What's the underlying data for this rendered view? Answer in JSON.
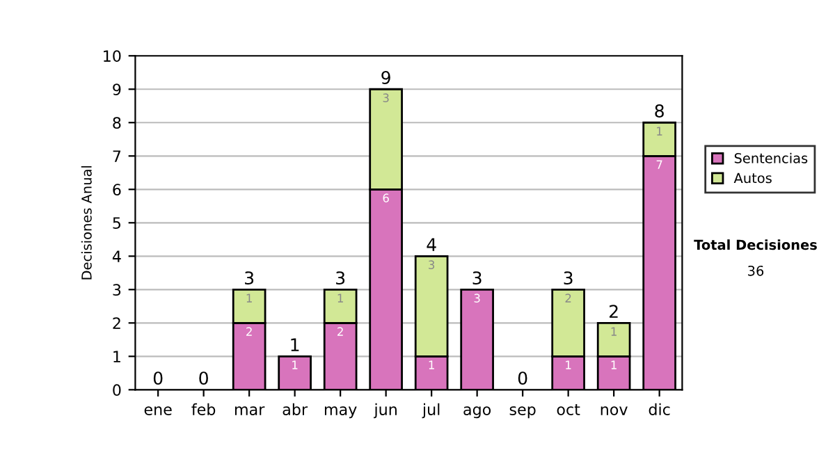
{
  "chart_data": {
    "type": "bar",
    "stacked": true,
    "ylabel": "Decisiones Anual",
    "categories": [
      "ene",
      "feb",
      "mar",
      "abr",
      "may",
      "jun",
      "jul",
      "ago",
      "sep",
      "oct",
      "nov",
      "dic"
    ],
    "series": [
      {
        "name": "Sentencias",
        "color": "#d874bc",
        "values": [
          0,
          0,
          2,
          1,
          2,
          6,
          1,
          3,
          0,
          1,
          1,
          7
        ],
        "value_labels": [
          null,
          null,
          "2",
          "1",
          "2",
          "6",
          "1",
          "3",
          null,
          "1",
          "1",
          "7"
        ]
      },
      {
        "name": "Autos",
        "color": "#d2e896",
        "values": [
          0,
          0,
          1,
          0,
          1,
          3,
          3,
          0,
          0,
          2,
          1,
          1
        ],
        "value_labels": [
          null,
          null,
          "1",
          null,
          "1",
          "3",
          "3",
          null,
          null,
          "2",
          "1",
          "1"
        ]
      }
    ],
    "totals": [
      "0",
      "0",
      "3",
      "1",
      "3",
      "9",
      "4",
      "3",
      "0",
      "3",
      "2",
      "8"
    ],
    "ylim": [
      0,
      10
    ],
    "yticks": [
      0,
      1,
      2,
      3,
      4,
      5,
      6,
      7,
      8,
      9,
      10
    ],
    "grid": "y",
    "legend": "right",
    "annotations": [
      "Total Decisiones",
      "36"
    ]
  }
}
